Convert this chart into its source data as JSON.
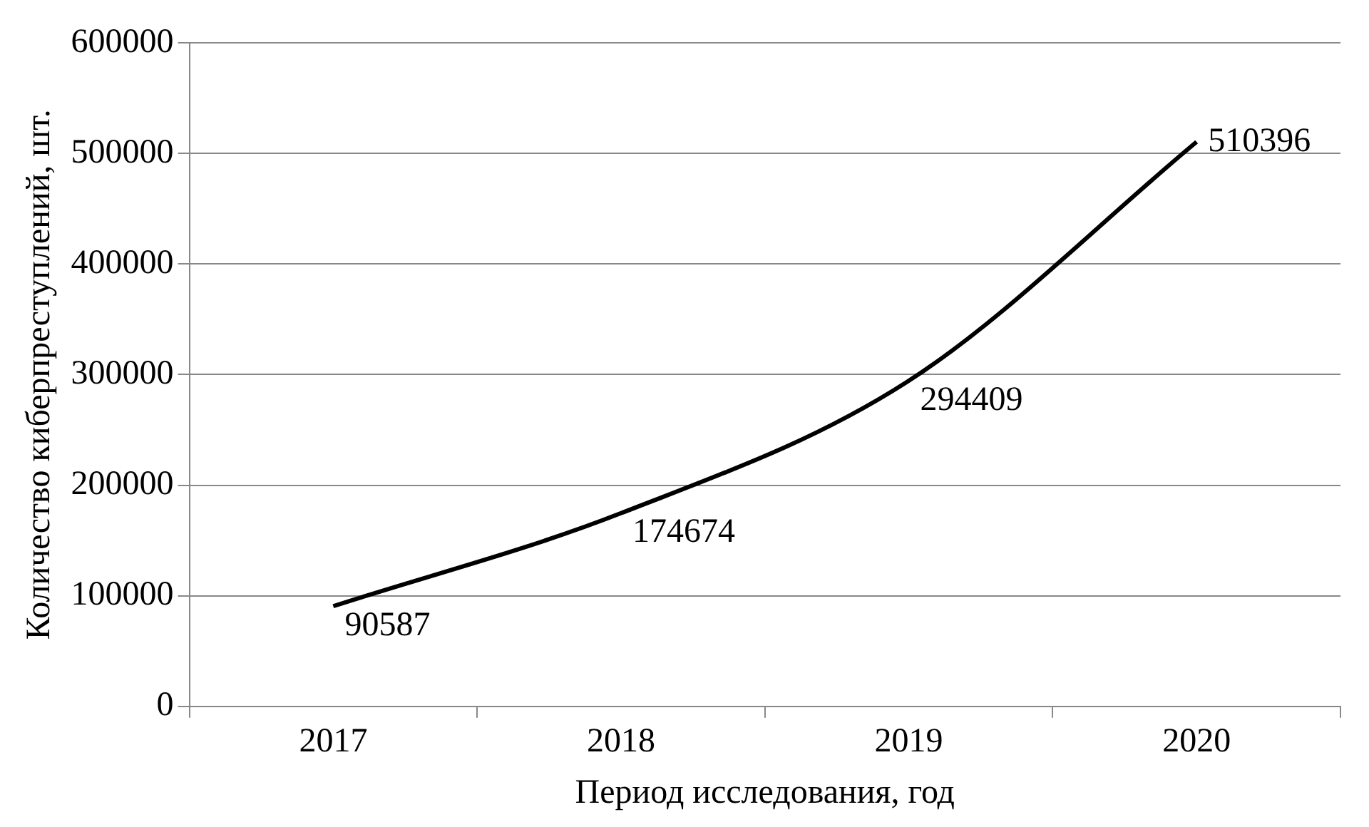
{
  "chart_data": {
    "type": "line",
    "xlabel": "Период исследования, год",
    "ylabel": "Количество киберпреступлений, шт.",
    "categories": [
      "2017",
      "2018",
      "2019",
      "2020"
    ],
    "series": [
      {
        "color": "#000000",
        "values": [
          90587,
          174674,
          294409,
          510396
        ]
      }
    ],
    "ylim": [
      0,
      600000
    ],
    "yticks": [
      0,
      100000,
      200000,
      300000,
      400000,
      500000,
      600000
    ],
    "grid": "y",
    "legend": false,
    "marker": "none",
    "line_style": "solid",
    "data_labels": true
  }
}
